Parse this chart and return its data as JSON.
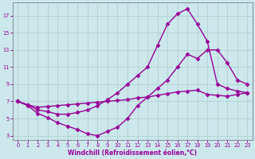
{
  "xlabel": "Windchill (Refroidissement éolien,°C)",
  "bg_color": "#cce8ec",
  "line_color": "#990099",
  "grid_color": "#aacccc",
  "xlim": [
    -0.5,
    23.5
  ],
  "ylim": [
    2.5,
    18.5
  ],
  "xticks": [
    0,
    1,
    2,
    3,
    4,
    5,
    6,
    7,
    8,
    9,
    10,
    11,
    12,
    13,
    14,
    15,
    16,
    17,
    18,
    19,
    20,
    21,
    22,
    23
  ],
  "yticks": [
    3,
    5,
    7,
    9,
    11,
    13,
    15,
    17
  ],
  "curve1_x": [
    0,
    1,
    2,
    3,
    4,
    5,
    6,
    7,
    8,
    9,
    10,
    11,
    12,
    13,
    14,
    15,
    16,
    17,
    18,
    19,
    20,
    21,
    22,
    23
  ],
  "curve1_y": [
    7.0,
    6.5,
    5.6,
    5.1,
    4.5,
    4.1,
    3.7,
    3.2,
    3.0,
    3.5,
    4.0,
    5.0,
    6.5,
    7.5,
    8.5,
    9.5,
    11.0,
    12.5,
    12.0,
    13.0,
    13.0,
    11.5,
    9.5,
    9.0
  ],
  "curve2_x": [
    0,
    1,
    2,
    3,
    4,
    5,
    6,
    7,
    8,
    9,
    10,
    11,
    12,
    13,
    14,
    15,
    16,
    17,
    18,
    19,
    20,
    21,
    22,
    23
  ],
  "curve2_y": [
    7.0,
    6.6,
    6.3,
    6.4,
    6.5,
    6.6,
    6.7,
    6.8,
    6.9,
    7.0,
    7.1,
    7.2,
    7.4,
    7.5,
    7.7,
    7.9,
    8.1,
    8.2,
    8.3,
    7.8,
    7.7,
    7.6,
    7.8,
    8.0
  ],
  "curve3_x": [
    0,
    1,
    2,
    3,
    4,
    5,
    6,
    7,
    8,
    9,
    10,
    11,
    12,
    13,
    14,
    15,
    16,
    17,
    18,
    19,
    20,
    21,
    22,
    23
  ],
  "curve3_y": [
    7.0,
    6.6,
    6.0,
    5.8,
    5.5,
    5.5,
    5.7,
    6.0,
    6.5,
    7.2,
    8.0,
    9.0,
    10.0,
    11.0,
    13.5,
    16.0,
    17.2,
    17.8,
    16.0,
    14.0,
    9.0,
    8.5,
    8.2,
    8.0
  ],
  "marker": "D",
  "markersize": 2.5,
  "linewidth": 1.0,
  "axis_fontsize": 5.5,
  "tick_fontsize": 4.8
}
